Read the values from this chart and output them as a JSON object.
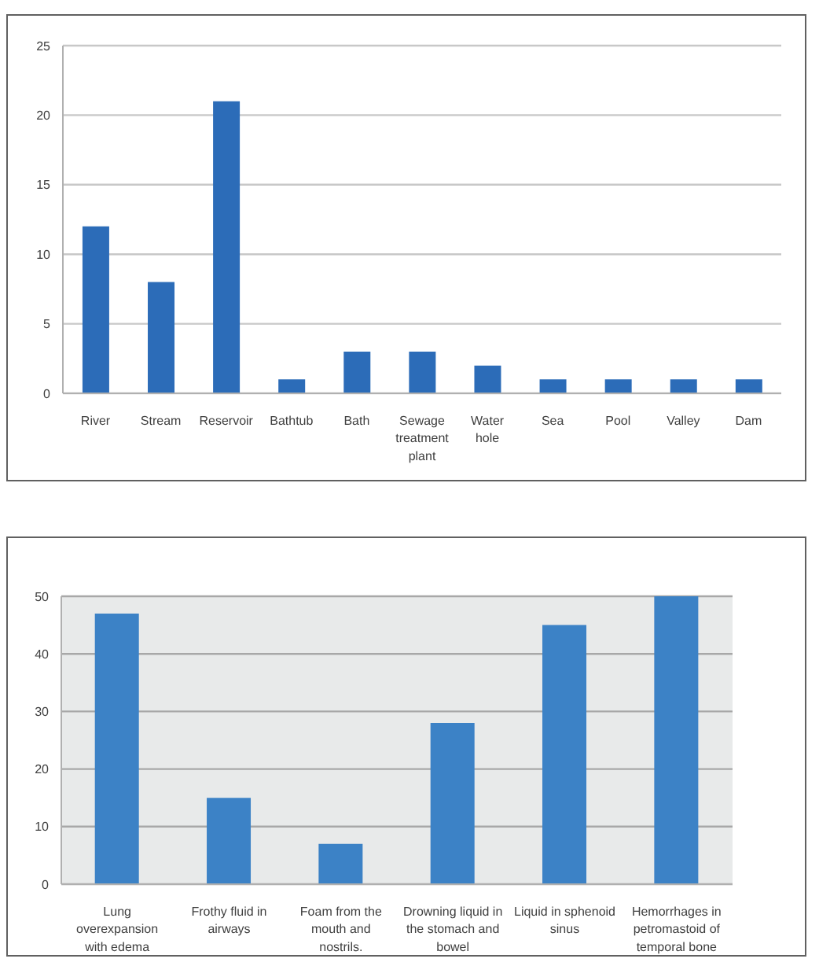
{
  "chart_data": [
    {
      "type": "bar",
      "categories": [
        "River",
        "Stream",
        "Reservoir",
        "Bathtub",
        "Bath",
        "Sewage treatment plant",
        "Water hole",
        "Sea",
        "Pool",
        "Valley",
        "Dam"
      ],
      "values": [
        12,
        8,
        21,
        1,
        3,
        3,
        2,
        1,
        1,
        1,
        1
      ],
      "color": "#2c6cb8",
      "ylim": [
        0,
        25
      ],
      "yticks": [
        0,
        5,
        10,
        15,
        20,
        25
      ],
      "grid": "y"
    },
    {
      "type": "bar",
      "categories": [
        "Lung overexpansion with edema",
        "Frothy fluid in airways",
        "Foam from the mouth and nostrils.",
        "Drowning liquid in the stomach and bowel",
        "Liquid in sphenoid sinus",
        "Hemorrhages in petromastoid of temporal bone"
      ],
      "values": [
        47,
        15,
        7,
        28,
        45,
        50
      ],
      "color": "#3c82c6",
      "ylim": [
        0,
        50
      ],
      "yticks": [
        0,
        10,
        20,
        30,
        40,
        50
      ],
      "grid": "y"
    }
  ]
}
